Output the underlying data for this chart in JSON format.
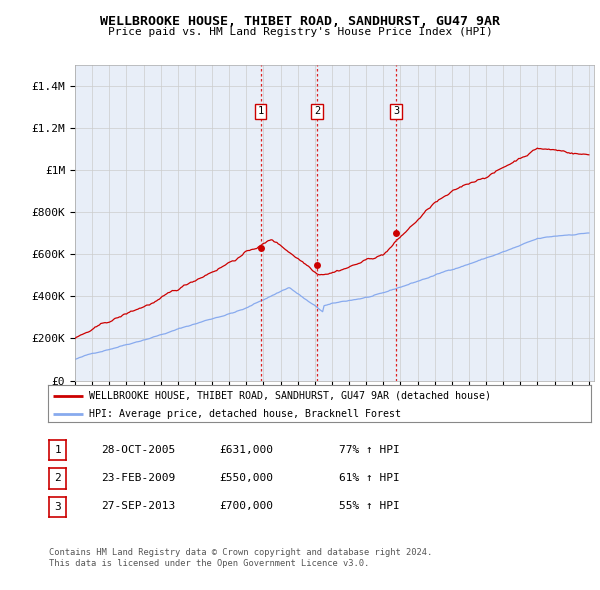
{
  "title": "WELLBROOKE HOUSE, THIBET ROAD, SANDHURST, GU47 9AR",
  "subtitle": "Price paid vs. HM Land Registry's House Price Index (HPI)",
  "ylim": [
    0,
    1500000
  ],
  "yticks": [
    0,
    200000,
    400000,
    600000,
    800000,
    1000000,
    1200000,
    1400000
  ],
  "ytick_labels": [
    "£0",
    "£200K",
    "£400K",
    "£600K",
    "£800K",
    "£1M",
    "£1.2M",
    "£1.4M"
  ],
  "sale_dates_num": [
    2005.83,
    2009.14,
    2013.75
  ],
  "sale_prices": [
    631000,
    550000,
    700000
  ],
  "sale_labels": [
    "1",
    "2",
    "3"
  ],
  "vline_color": "#dd2222",
  "marker_color": "#cc0000",
  "hpi_color": "#88aaee",
  "price_color": "#cc0000",
  "legend_label_price": "WELLBROOKE HOUSE, THIBET ROAD, SANDHURST, GU47 9AR (detached house)",
  "legend_label_hpi": "HPI: Average price, detached house, Bracknell Forest",
  "table_data": [
    [
      "1",
      "28-OCT-2005",
      "£631,000",
      "77% ↑ HPI"
    ],
    [
      "2",
      "23-FEB-2009",
      "£550,000",
      "61% ↑ HPI"
    ],
    [
      "3",
      "27-SEP-2013",
      "£700,000",
      "55% ↑ HPI"
    ]
  ],
  "footnote": "Contains HM Land Registry data © Crown copyright and database right 2024.\nThis data is licensed under the Open Government Licence v3.0.",
  "bg_color": "#e8eef8",
  "plot_bg": "#eef2fa"
}
